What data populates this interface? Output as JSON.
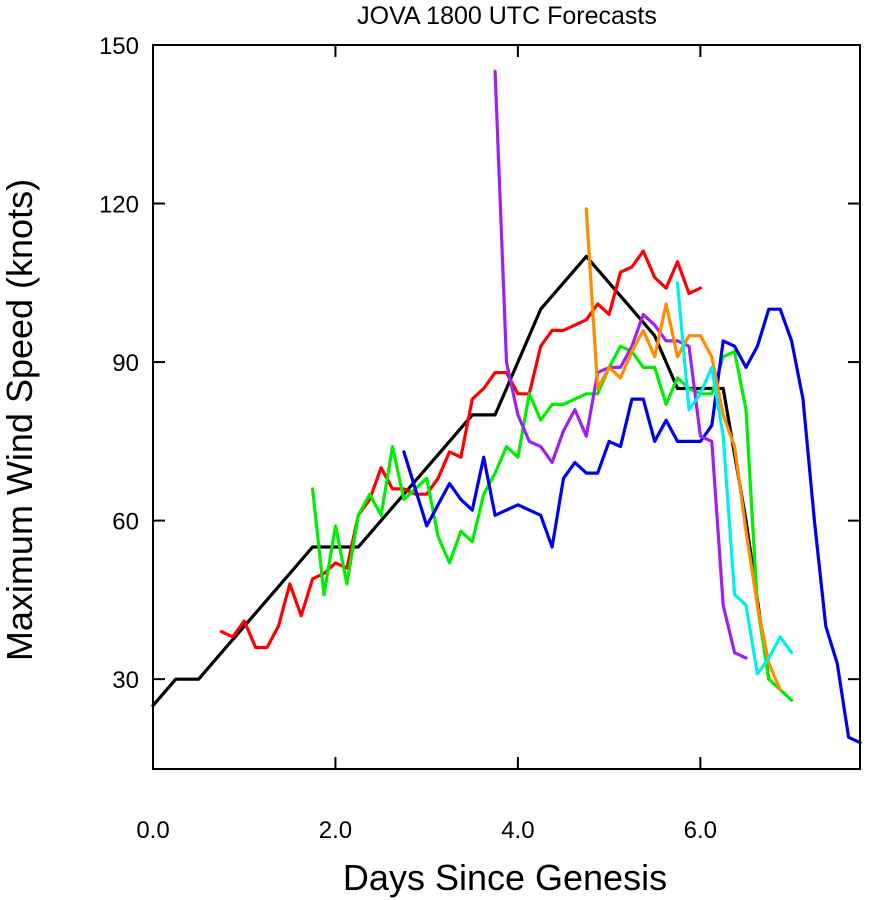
{
  "chart_data": {
    "type": "line",
    "title": "JOVA 1800 UTC Forecasts",
    "xlabel": "Days Since Genesis",
    "ylabel": "Maximum Wind Speed (knots)",
    "xlim": [
      0,
      7.75
    ],
    "ylim": [
      13,
      150
    ],
    "xticks": [
      0,
      2,
      4,
      6
    ],
    "xtick_labels": [
      "0.0",
      "2.0",
      "4.0",
      "6.0"
    ],
    "yticks": [
      30,
      60,
      90,
      120,
      150
    ],
    "ytick_labels": [
      "30",
      "60",
      "90",
      "120",
      "150"
    ],
    "grid": false,
    "series": [
      {
        "color": "#000000",
        "points": [
          [
            0.0,
            25
          ],
          [
            0.25,
            30
          ],
          [
            0.5,
            30
          ],
          [
            0.75,
            35
          ],
          [
            1.0,
            40
          ],
          [
            1.25,
            45
          ],
          [
            1.5,
            50
          ],
          [
            1.75,
            55
          ],
          [
            2.0,
            55
          ],
          [
            2.25,
            55
          ],
          [
            2.5,
            60
          ],
          [
            2.75,
            65
          ],
          [
            3.0,
            70
          ],
          [
            3.25,
            75
          ],
          [
            3.5,
            80
          ],
          [
            3.75,
            80
          ],
          [
            4.0,
            90
          ],
          [
            4.25,
            100
          ],
          [
            4.5,
            105
          ],
          [
            4.75,
            110
          ],
          [
            5.0,
            105
          ],
          [
            5.25,
            100
          ],
          [
            5.5,
            95
          ],
          [
            5.75,
            85
          ],
          [
            6.0,
            85
          ],
          [
            6.25,
            85
          ],
          [
            6.5,
            60
          ],
          [
            6.75,
            30
          ]
        ]
      },
      {
        "color": "#ff0000",
        "points": [
          [
            0.75,
            39
          ],
          [
            0.875,
            38
          ],
          [
            1.0,
            41
          ],
          [
            1.125,
            36
          ],
          [
            1.25,
            36
          ],
          [
            1.375,
            40
          ],
          [
            1.5,
            48
          ],
          [
            1.625,
            42
          ],
          [
            1.75,
            49
          ],
          [
            1.875,
            50
          ],
          [
            2.0,
            52
          ],
          [
            2.125,
            51
          ],
          [
            2.25,
            61
          ],
          [
            2.375,
            64
          ],
          [
            2.5,
            70
          ],
          [
            2.625,
            66
          ],
          [
            2.75,
            66
          ],
          [
            2.875,
            65
          ],
          [
            3.0,
            65
          ],
          [
            3.125,
            68
          ],
          [
            3.25,
            73
          ],
          [
            3.375,
            72
          ],
          [
            3.5,
            83
          ],
          [
            3.625,
            85
          ],
          [
            3.75,
            88
          ],
          [
            3.875,
            88
          ],
          [
            4.0,
            84
          ],
          [
            4.125,
            84
          ],
          [
            4.25,
            93
          ],
          [
            4.375,
            96
          ],
          [
            4.5,
            96
          ],
          [
            4.625,
            97
          ],
          [
            4.75,
            98
          ],
          [
            4.875,
            101
          ],
          [
            5.0,
            99
          ],
          [
            5.125,
            107
          ],
          [
            5.25,
            108
          ],
          [
            5.375,
            111
          ],
          [
            5.5,
            106
          ],
          [
            5.625,
            104
          ],
          [
            5.75,
            109
          ],
          [
            5.875,
            103
          ],
          [
            6.0,
            104
          ]
        ]
      },
      {
        "color": "#00ee00",
        "points": [
          [
            1.75,
            66
          ],
          [
            1.875,
            46
          ],
          [
            2.0,
            59
          ],
          [
            2.125,
            48
          ],
          [
            2.25,
            61
          ],
          [
            2.375,
            65
          ],
          [
            2.5,
            61
          ],
          [
            2.625,
            74
          ],
          [
            2.75,
            64
          ],
          [
            2.875,
            66
          ],
          [
            3.0,
            68
          ],
          [
            3.125,
            57
          ],
          [
            3.25,
            52
          ],
          [
            3.375,
            58
          ],
          [
            3.5,
            56
          ],
          [
            3.625,
            65
          ],
          [
            3.75,
            69
          ],
          [
            3.875,
            74
          ],
          [
            4.0,
            72
          ],
          [
            4.125,
            84
          ],
          [
            4.25,
            79
          ],
          [
            4.375,
            82
          ],
          [
            4.5,
            82
          ],
          [
            4.625,
            83
          ],
          [
            4.75,
            84
          ],
          [
            4.875,
            84
          ],
          [
            5.0,
            89
          ],
          [
            5.125,
            93
          ],
          [
            5.25,
            92
          ],
          [
            5.375,
            89
          ],
          [
            5.5,
            89
          ],
          [
            5.625,
            82
          ],
          [
            5.75,
            87
          ],
          [
            5.875,
            85
          ],
          [
            6.0,
            84
          ],
          [
            6.125,
            84
          ],
          [
            6.25,
            91
          ],
          [
            6.375,
            92
          ],
          [
            6.5,
            81
          ],
          [
            6.625,
            44
          ],
          [
            6.75,
            30
          ],
          [
            6.875,
            28
          ],
          [
            7.0,
            26
          ]
        ]
      },
      {
        "color": "#0000ee",
        "points": [
          [
            2.75,
            73
          ],
          [
            2.875,
            66
          ],
          [
            3.0,
            59
          ],
          [
            3.125,
            63
          ],
          [
            3.25,
            67
          ],
          [
            3.375,
            64
          ],
          [
            3.5,
            62
          ],
          [
            3.625,
            72
          ],
          [
            3.75,
            61
          ],
          [
            3.875,
            62
          ],
          [
            4.0,
            63
          ],
          [
            4.125,
            62
          ],
          [
            4.25,
            61
          ],
          [
            4.375,
            55
          ],
          [
            4.5,
            68
          ],
          [
            4.625,
            71
          ],
          [
            4.75,
            69
          ],
          [
            4.875,
            69
          ],
          [
            5.0,
            75
          ],
          [
            5.125,
            74
          ],
          [
            5.25,
            83
          ],
          [
            5.375,
            83
          ],
          [
            5.5,
            75
          ],
          [
            5.625,
            79
          ],
          [
            5.75,
            75
          ],
          [
            5.875,
            75
          ],
          [
            6.0,
            75
          ],
          [
            6.125,
            78
          ],
          [
            6.25,
            94
          ],
          [
            6.375,
            93
          ],
          [
            6.5,
            89
          ],
          [
            6.625,
            93
          ],
          [
            6.75,
            100
          ],
          [
            6.875,
            100
          ],
          [
            7.0,
            94
          ],
          [
            7.125,
            83
          ],
          [
            7.25,
            60
          ],
          [
            7.375,
            40
          ],
          [
            7.5,
            33
          ],
          [
            7.625,
            19
          ],
          [
            7.75,
            18
          ]
        ]
      },
      {
        "color": "#a020f0",
        "points": [
          [
            3.75,
            145
          ],
          [
            3.875,
            90
          ],
          [
            4.0,
            80
          ],
          [
            4.125,
            75
          ],
          [
            4.25,
            74
          ],
          [
            4.375,
            71
          ],
          [
            4.5,
            77
          ],
          [
            4.625,
            81
          ],
          [
            4.75,
            76
          ],
          [
            4.875,
            88
          ],
          [
            5.0,
            89
          ],
          [
            5.125,
            89
          ],
          [
            5.25,
            93
          ],
          [
            5.375,
            99
          ],
          [
            5.5,
            97
          ],
          [
            5.625,
            94
          ],
          [
            5.75,
            94
          ],
          [
            5.875,
            93
          ],
          [
            6.0,
            76
          ],
          [
            6.125,
            75
          ],
          [
            6.25,
            44
          ],
          [
            6.375,
            35
          ],
          [
            6.5,
            34
          ]
        ]
      },
      {
        "color": "#ff8c00",
        "points": [
          [
            4.75,
            119
          ],
          [
            4.875,
            85
          ],
          [
            5.0,
            89
          ],
          [
            5.125,
            87
          ],
          [
            5.25,
            92
          ],
          [
            5.375,
            96
          ],
          [
            5.5,
            91
          ],
          [
            5.625,
            101
          ],
          [
            5.75,
            91
          ],
          [
            5.875,
            95
          ],
          [
            6.0,
            95
          ],
          [
            6.125,
            91
          ],
          [
            6.25,
            80
          ],
          [
            6.375,
            74
          ],
          [
            6.5,
            58
          ],
          [
            6.625,
            44
          ],
          [
            6.75,
            33
          ],
          [
            6.875,
            28
          ]
        ]
      },
      {
        "color": "#00eeee",
        "points": [
          [
            5.75,
            105
          ],
          [
            5.875,
            81
          ],
          [
            6.0,
            84
          ],
          [
            6.125,
            89
          ],
          [
            6.25,
            76
          ],
          [
            6.375,
            46
          ],
          [
            6.5,
            44
          ],
          [
            6.625,
            31
          ],
          [
            6.75,
            34
          ],
          [
            6.875,
            38
          ],
          [
            7.0,
            35
          ]
        ]
      }
    ]
  }
}
